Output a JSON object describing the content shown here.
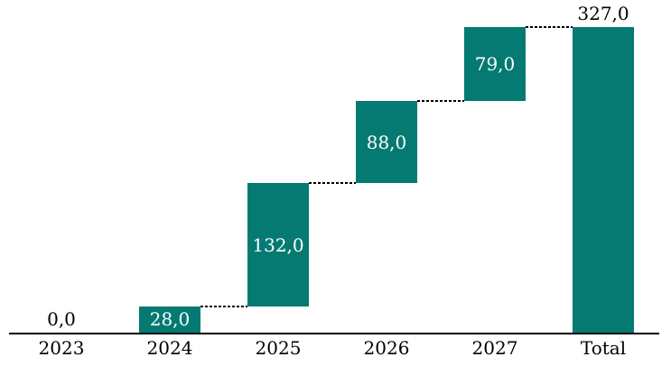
{
  "page": {
    "background": "#FFFFFF"
  },
  "chart_data": {
    "type": "bar",
    "subtype": "waterfall",
    "title": "",
    "xlabel": "",
    "ylabel": "",
    "categories": [
      "2023",
      "2024",
      "2025",
      "2026",
      "2027",
      "Total"
    ],
    "values": [
      0,
      28,
      132,
      88,
      79,
      327
    ],
    "value_labels": [
      "0,0",
      "28,0",
      "132,0",
      "88,0",
      "79,0",
      "327,0"
    ],
    "starts": [
      0,
      0,
      28,
      160,
      248,
      0
    ],
    "ends": [
      0,
      28,
      160,
      248,
      327,
      327
    ],
    "label_positions": [
      "above",
      "inside",
      "inside",
      "inside",
      "inside",
      "above"
    ],
    "ylim": [
      0,
      327
    ],
    "grid": false,
    "legend": false,
    "bar_color": "#057A72",
    "label_color_inside": "#FFFFFF",
    "label_color_outside": "#000000",
    "axis_color": "#000000",
    "connector_color": "#000000",
    "connector_style": "dashed",
    "decimal_separator": ","
  }
}
